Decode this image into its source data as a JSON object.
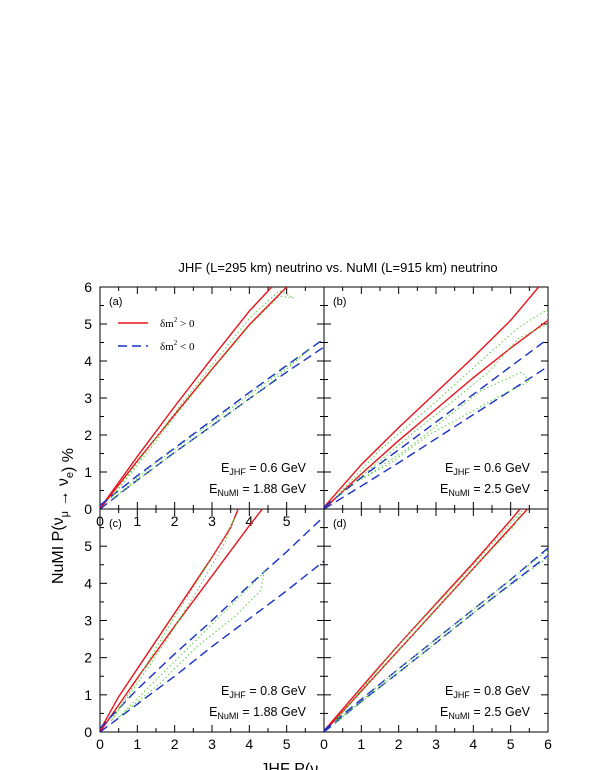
{
  "title": "JHF (L=295 km)  neutrino vs. NuMI (L=915 km) neutrino",
  "ylabel": "NuMI P(νμ → νe) %",
  "xlabel": "JHF P(νμ → νe) %",
  "colors": {
    "positive": "#e8141c",
    "negative": "#1530c8",
    "contour": "#5acd3c"
  },
  "legend": [
    {
      "label": "δm² > 0",
      "color": "#e8141c",
      "style": "solid"
    },
    {
      "label": "δm² < 0",
      "color": "#1530c8",
      "style": "dashed"
    }
  ],
  "chart_data": [
    {
      "type": "line",
      "panel": "(a)",
      "xlim": [
        0,
        6
      ],
      "ylim": [
        0,
        6
      ],
      "x_ticks": [
        "0",
        "1",
        "2",
        "3",
        "4",
        "5"
      ],
      "y_ticks": [
        "0",
        "1",
        "2",
        "3",
        "4",
        "5",
        "6"
      ],
      "energy_jhf": "E_JHF = 0.6 GeV",
      "energy_numi": "E_NuMI = 1.88 GeV",
      "series": [
        {
          "name": "δm² > 0",
          "style": "solid",
          "color": "#e8141c",
          "x": [
            0,
            1,
            2,
            3,
            4,
            4.6
          ],
          "y": [
            0.02,
            1.42,
            2.77,
            4.08,
            5.35,
            6.0
          ]
        },
        {
          "name": "δm² > 0",
          "style": "solid",
          "color": "#e8141c",
          "x": [
            0,
            1,
            2,
            3,
            4,
            5
          ],
          "y": [
            0.0,
            1.3,
            2.55,
            3.78,
            4.98,
            6.0
          ]
        },
        {
          "name": "δm² < 0",
          "style": "dashed",
          "color": "#1530c8",
          "x": [
            0,
            1,
            2,
            3,
            4,
            5,
            6
          ],
          "y": [
            0.1,
            0.9,
            1.65,
            2.4,
            3.15,
            3.88,
            4.6
          ]
        },
        {
          "name": "δm² < 0",
          "style": "dashed",
          "color": "#1530c8",
          "x": [
            0,
            1,
            2,
            3,
            4,
            5,
            6
          ],
          "y": [
            0.0,
            0.78,
            1.53,
            2.25,
            2.98,
            3.7,
            4.38
          ]
        },
        {
          "style": "dotted",
          "color": "#5acd3c",
          "x": [
            0.3,
            1,
            2,
            3,
            4,
            4.8,
            5.2,
            4.8,
            4,
            3,
            2,
            1,
            0.3
          ],
          "y": [
            0.3,
            1.25,
            2.6,
            3.9,
            5.15,
            5.9,
            5.7,
            5.75,
            4.95,
            3.75,
            2.5,
            1.18,
            0.3
          ]
        },
        {
          "style": "dotted",
          "color": "#5acd3c",
          "x": [
            0.3,
            1.5,
            3,
            4.5,
            5.6,
            4.5,
            3,
            1.5,
            0.3
          ],
          "y": [
            0.25,
            1.25,
            2.35,
            3.45,
            4.3,
            3.35,
            2.25,
            1.15,
            0.25
          ]
        }
      ]
    },
    {
      "type": "line",
      "panel": "(b)",
      "xlim": [
        0,
        6
      ],
      "ylim": [
        0,
        6
      ],
      "x_ticks": [],
      "y_ticks": [],
      "energy_jhf": "E_JHF = 0.6 GeV",
      "energy_numi": "E_NuMI = 2.5 GeV",
      "series": [
        {
          "name": "δm² > 0",
          "style": "solid",
          "color": "#e8141c",
          "x": [
            0,
            1,
            2,
            3,
            4,
            5,
            5.75
          ],
          "y": [
            0.05,
            1.2,
            2.2,
            3.15,
            4.1,
            5.1,
            6.0
          ]
        },
        {
          "name": "δm² > 0",
          "style": "solid",
          "color": "#e8141c",
          "x": [
            0,
            1,
            2,
            3,
            4,
            5,
            6
          ],
          "y": [
            0.0,
            0.95,
            1.85,
            2.7,
            3.55,
            4.35,
            5.1
          ]
        },
        {
          "name": "δm² < 0",
          "style": "dashed",
          "color": "#1530c8",
          "x": [
            0,
            1,
            2,
            3,
            4,
            5,
            6
          ],
          "y": [
            0.05,
            0.85,
            1.6,
            2.35,
            3.1,
            3.85,
            4.6
          ]
        },
        {
          "name": "δm² < 0",
          "style": "dashed",
          "color": "#1530c8",
          "x": [
            0,
            1,
            2,
            3,
            4,
            5,
            6
          ],
          "y": [
            0.0,
            0.62,
            1.25,
            1.9,
            2.55,
            3.2,
            3.85
          ]
        },
        {
          "style": "dotted",
          "color": "#5acd3c",
          "x": [
            0.3,
            1.5,
            3,
            4.2,
            5.2,
            6,
            6,
            5.2,
            4.4,
            3.5,
            2.5,
            1.5,
            0.3
          ],
          "y": [
            0.3,
            1.6,
            2.9,
            4.0,
            4.9,
            5.4,
            5.0,
            4.6,
            3.7,
            2.95,
            2.15,
            1.3,
            0.3
          ]
        },
        {
          "style": "dotted",
          "color": "#5acd3c",
          "x": [
            1,
            2.2,
            3.2,
            4.2,
            5.3,
            5.5,
            4.8,
            3.8,
            2.8,
            1.8,
            1
          ],
          "y": [
            0.8,
            1.6,
            2.4,
            3.2,
            3.7,
            3.45,
            3.1,
            2.55,
            2.0,
            1.25,
            0.8
          ]
        }
      ]
    },
    {
      "type": "line",
      "panel": "(c)",
      "xlim": [
        0,
        6
      ],
      "ylim": [
        0,
        6
      ],
      "x_ticks": [
        "0",
        "1",
        "2",
        "3",
        "4",
        "5"
      ],
      "y_ticks": [
        "0",
        "1",
        "2",
        "3",
        "4",
        "5"
      ],
      "energy_jhf": "E_JHF = 0.8 GeV",
      "energy_numi": "E_NuMI = 1.88 GeV",
      "series": [
        {
          "name": "δm² > 0",
          "style": "solid",
          "color": "#e8141c",
          "x": [
            0,
            0.5,
            1,
            1.5,
            2,
            2.5,
            3,
            3.5,
            3.7
          ],
          "y": [
            0.05,
            0.95,
            1.7,
            2.45,
            3.2,
            3.95,
            4.7,
            5.5,
            6.0
          ]
        },
        {
          "name": "δm² > 0",
          "style": "solid",
          "color": "#e8141c",
          "x": [
            0,
            1,
            2,
            3,
            4,
            4.35
          ],
          "y": [
            0.0,
            1.45,
            2.85,
            4.2,
            5.55,
            6.0
          ]
        },
        {
          "name": "δm² < 0",
          "style": "dashed",
          "color": "#1530c8",
          "x": [
            0,
            1,
            2,
            3,
            4,
            5,
            6
          ],
          "y": [
            0.1,
            1.15,
            2.1,
            3.0,
            3.95,
            4.85,
            5.8
          ]
        },
        {
          "name": "δm² < 0",
          "style": "dashed",
          "color": "#1530c8",
          "x": [
            0,
            1,
            2,
            3,
            4,
            5,
            6
          ],
          "y": [
            0.0,
            0.75,
            1.5,
            2.3,
            3.05,
            3.8,
            4.6
          ]
        },
        {
          "style": "dotted",
          "color": "#5acd3c",
          "x": [
            0.3,
            1,
            1.8,
            2.6,
            3.3,
            3.6,
            3.2,
            2.5,
            1.7,
            1,
            0.3
          ],
          "y": [
            0.3,
            1.3,
            2.5,
            3.8,
            5.0,
            5.75,
            5.0,
            3.9,
            2.6,
            1.4,
            0.3
          ]
        },
        {
          "style": "dotted",
          "color": "#5acd3c",
          "x": [
            0.5,
            1.5,
            2.5,
            3.5,
            4.4,
            4.3,
            3.6,
            2.6,
            1.6,
            0.5
          ],
          "y": [
            0.4,
            1.4,
            2.4,
            3.4,
            4.3,
            3.8,
            3.1,
            2.3,
            1.3,
            0.4
          ]
        }
      ]
    },
    {
      "type": "line",
      "panel": "(d)",
      "xlim": [
        0,
        6
      ],
      "ylim": [
        0,
        6
      ],
      "x_ticks": [
        "0",
        "1",
        "2",
        "3",
        "4",
        "5",
        "6"
      ],
      "y_ticks": [],
      "energy_jhf": "E_JHF = 0.8 GeV",
      "energy_numi": "E_NuMI = 2.5 GeV",
      "series": [
        {
          "name": "δm² > 0",
          "style": "solid",
          "color": "#e8141c",
          "x": [
            0,
            1,
            2,
            3,
            4,
            5,
            5.25
          ],
          "y": [
            0.03,
            1.2,
            2.35,
            3.45,
            4.55,
            5.7,
            6.0
          ]
        },
        {
          "name": "δm² > 0",
          "style": "solid",
          "color": "#e8141c",
          "x": [
            0,
            1,
            2,
            3,
            4,
            5,
            5.45
          ],
          "y": [
            0.0,
            1.1,
            2.2,
            3.3,
            4.4,
            5.5,
            6.0
          ]
        },
        {
          "name": "δm² < 0",
          "style": "dashed",
          "color": "#1530c8",
          "x": [
            0,
            1,
            2,
            3,
            4,
            5,
            6
          ],
          "y": [
            0.05,
            0.88,
            1.7,
            2.5,
            3.3,
            4.1,
            4.95
          ]
        },
        {
          "name": "δm² < 0",
          "style": "dashed",
          "color": "#1530c8",
          "x": [
            0,
            1,
            2,
            3,
            4,
            5,
            6
          ],
          "y": [
            0.0,
            0.82,
            1.6,
            2.4,
            3.2,
            3.98,
            4.75
          ]
        },
        {
          "style": "dotted",
          "color": "#5acd3c",
          "x": [
            0.3,
            2,
            4,
            5.3,
            5.1,
            4,
            2,
            0.3
          ],
          "y": [
            0.3,
            2.35,
            4.5,
            5.95,
            5.55,
            4.4,
            2.2,
            0.3
          ]
        },
        {
          "style": "dotted",
          "color": "#5acd3c",
          "x": [
            0.3,
            2,
            4,
            6,
            6,
            4,
            2,
            0.3
          ],
          "y": [
            0.25,
            1.7,
            3.3,
            4.9,
            4.7,
            3.2,
            1.6,
            0.25
          ]
        }
      ]
    }
  ]
}
